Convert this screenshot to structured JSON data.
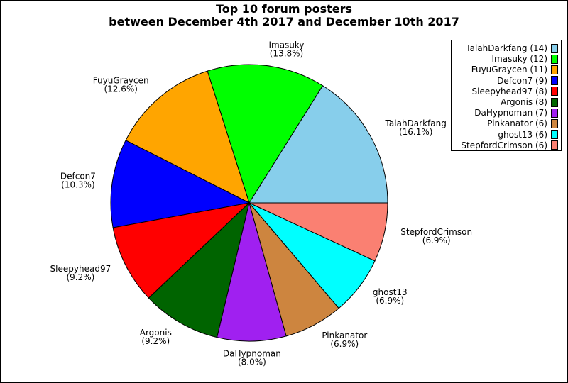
{
  "chart_data": {
    "type": "pie",
    "title": "Top 10 forum posters",
    "subtitle": "between December 4th 2017 and December 10th 2017",
    "slices": [
      {
        "name": "TalahDarkfang",
        "value": 14,
        "percent_label": "(16.1%)",
        "legend": "TalahDarkfang (14)",
        "color": "#87CEEB"
      },
      {
        "name": "Imasuky",
        "value": 12,
        "percent_label": "(13.8%)",
        "legend": "Imasuky (12)",
        "color": "#00FF00"
      },
      {
        "name": "FuyuGraycen",
        "value": 11,
        "percent_label": "(12.6%)",
        "legend": "FuyuGraycen (11)",
        "color": "#FFA500"
      },
      {
        "name": "Defcon7",
        "value": 9,
        "percent_label": "(10.3%)",
        "legend": "Defcon7 (9)",
        "color": "#0000FF"
      },
      {
        "name": "Sleepyhead97",
        "value": 8,
        "percent_label": "(9.2%)",
        "legend": "Sleepyhead97 (8)",
        "color": "#FF0000"
      },
      {
        "name": "Argonis",
        "value": 8,
        "percent_label": "(9.2%)",
        "legend": "Argonis (8)",
        "color": "#006400"
      },
      {
        "name": "DaHypnoman",
        "value": 7,
        "percent_label": "(8.0%)",
        "legend": "DaHypnoman (7)",
        "color": "#A020F0"
      },
      {
        "name": "Pinkanator",
        "value": 6,
        "percent_label": "(6.9%)",
        "legend": "Pinkanator (6)",
        "color": "#CD853F"
      },
      {
        "name": "ghost13",
        "value": 6,
        "percent_label": "(6.9%)",
        "legend": "ghost13 (6)",
        "color": "#00FFFF"
      },
      {
        "name": "StepfordCrimson",
        "value": 6,
        "percent_label": "(6.9%)",
        "legend": "StepfordCrimson (6)",
        "color": "#FA8072"
      }
    ],
    "start": "3 o'clock",
    "direction": "counterclockwise",
    "legend_position": "top-right"
  }
}
